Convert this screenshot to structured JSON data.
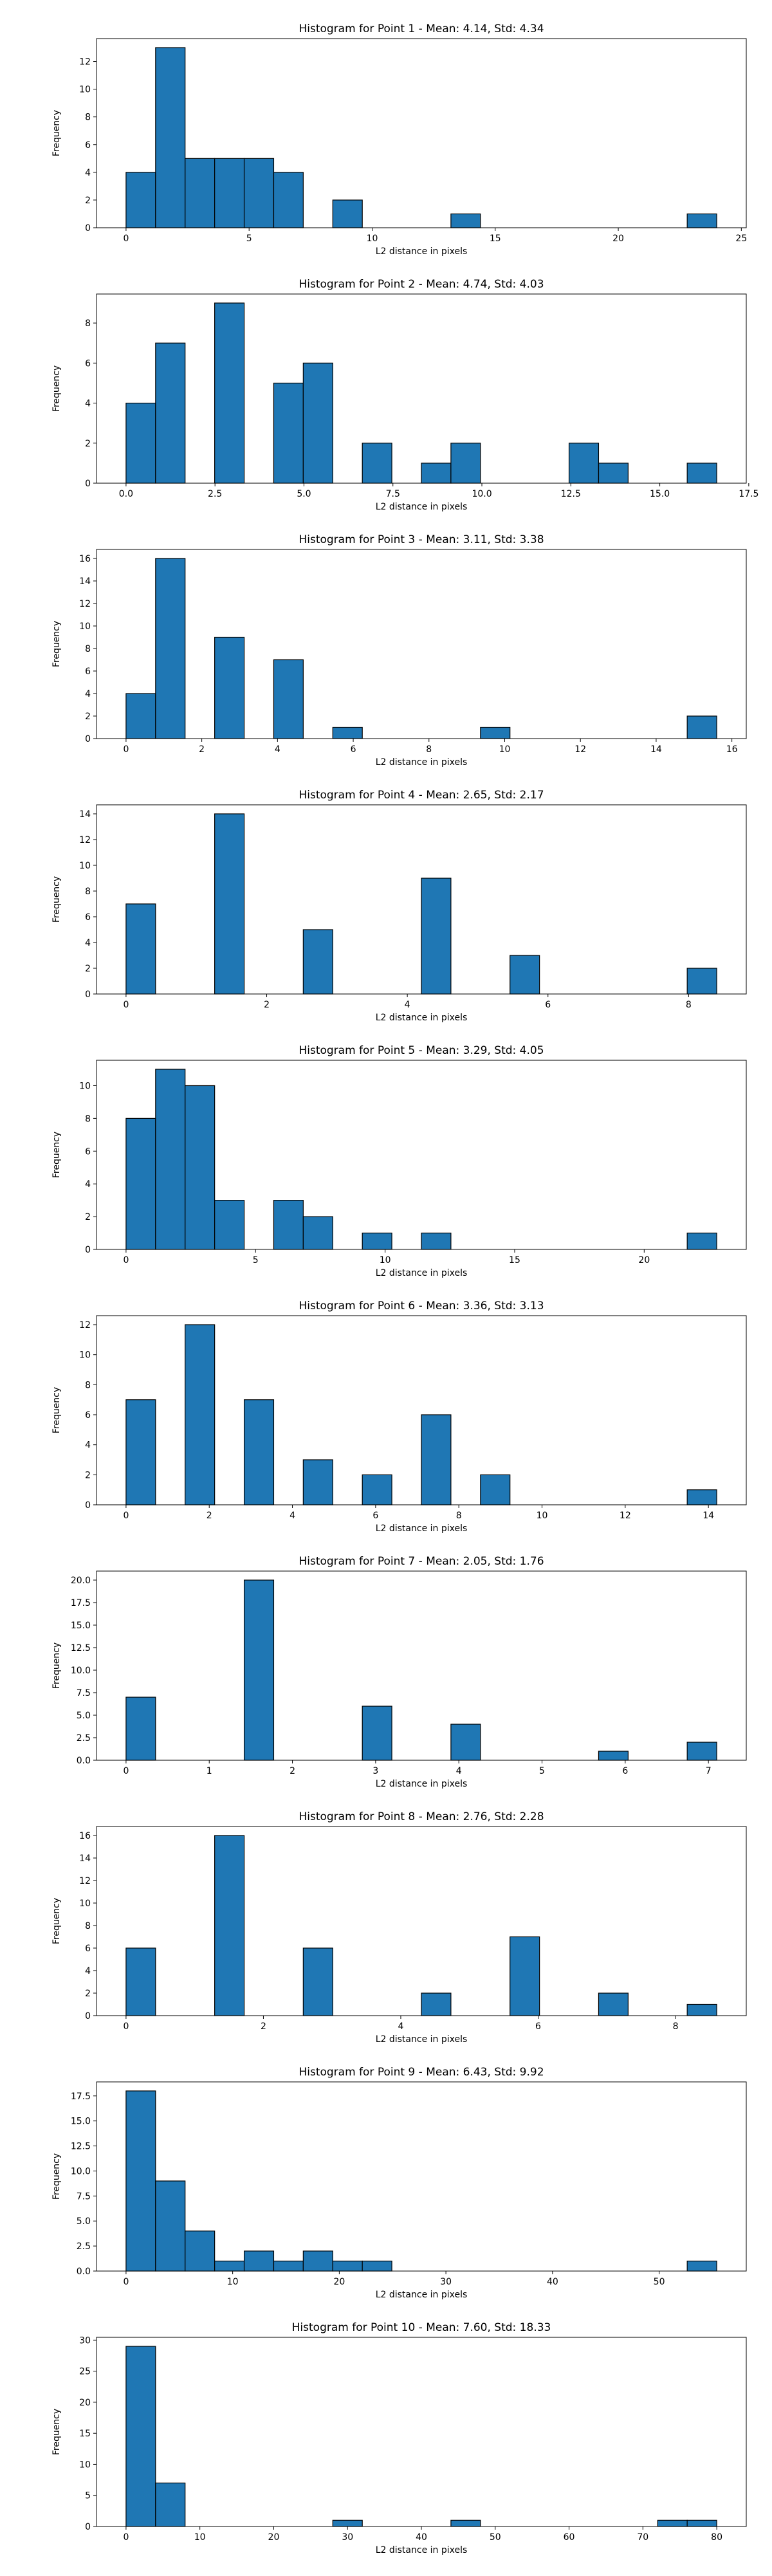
{
  "colors": {
    "bar_fill": "#1f77b4",
    "bar_edge": "#000000",
    "axis": "#000000",
    "background": "#ffffff"
  },
  "chart_data": [
    {
      "type": "bar",
      "title": "Histogram for Point 1 - Mean: 4.14, Std: 4.34",
      "xlabel": "L2 distance in pixels",
      "ylabel": "Frequency",
      "xlim": [
        -1.2,
        25.2
      ],
      "ylim": [
        0,
        13.65
      ],
      "xticks": [
        0,
        5,
        10,
        15,
        20,
        25
      ],
      "xtick_labels": [
        "0",
        "5",
        "10",
        "15",
        "20",
        "25"
      ],
      "yticks": [
        0,
        2,
        4,
        6,
        8,
        10,
        12
      ],
      "ytick_labels": [
        "0",
        "2",
        "4",
        "6",
        "8",
        "10",
        "12"
      ],
      "bin_edges": [
        0,
        1.2,
        2.4,
        3.6,
        4.8,
        6.0,
        7.2,
        8.4,
        9.6,
        10.8,
        12.0,
        13.2,
        14.4,
        15.6,
        16.8,
        18.0,
        19.2,
        20.4,
        21.6,
        22.8,
        24.0
      ],
      "values": [
        4,
        13,
        5,
        5,
        5,
        4,
        0,
        2,
        0,
        0,
        0,
        1,
        0,
        0,
        0,
        0,
        0,
        0,
        0,
        1
      ]
    },
    {
      "type": "bar",
      "title": "Histogram for Point 2 - Mean: 4.74, Std: 4.03",
      "xlabel": "L2 distance in pixels",
      "ylabel": "Frequency",
      "xlim": [
        -0.83,
        17.43
      ],
      "ylim": [
        0,
        9.45
      ],
      "xticks": [
        0,
        2.5,
        5,
        7.5,
        10,
        12.5,
        15,
        17.5
      ],
      "xtick_labels": [
        "0.0",
        "2.5",
        "5.0",
        "7.5",
        "10.0",
        "12.5",
        "15.0",
        "17.5"
      ],
      "yticks": [
        0,
        2,
        4,
        6,
        8
      ],
      "ytick_labels": [
        "0",
        "2",
        "4",
        "6",
        "8"
      ],
      "bin_edges": [
        0,
        0.83,
        1.66,
        2.49,
        3.32,
        4.15,
        4.98,
        5.81,
        6.64,
        7.47,
        8.3,
        9.13,
        9.96,
        10.79,
        11.62,
        12.45,
        13.28,
        14.11,
        14.94,
        15.77,
        16.6
      ],
      "values": [
        4,
        7,
        0,
        9,
        0,
        5,
        6,
        0,
        2,
        0,
        1,
        2,
        0,
        0,
        0,
        2,
        1,
        0,
        0,
        1
      ]
    },
    {
      "type": "bar",
      "title": "Histogram for Point 3 - Mean: 3.11, Std: 3.38",
      "xlabel": "L2 distance in pixels",
      "ylabel": "Frequency",
      "xlim": [
        -0.78,
        16.38
      ],
      "ylim": [
        0,
        16.8
      ],
      "xticks": [
        0,
        2,
        4,
        6,
        8,
        10,
        12,
        14,
        16
      ],
      "xtick_labels": [
        "0",
        "2",
        "4",
        "6",
        "8",
        "10",
        "12",
        "14",
        "16"
      ],
      "yticks": [
        0,
        2,
        4,
        6,
        8,
        10,
        12,
        14,
        16
      ],
      "ytick_labels": [
        "0",
        "2",
        "4",
        "6",
        "8",
        "10",
        "12",
        "14",
        "16"
      ],
      "bin_edges": [
        0,
        0.78,
        1.56,
        2.34,
        3.12,
        3.9,
        4.68,
        5.46,
        6.24,
        7.02,
        7.8,
        8.58,
        9.36,
        10.14,
        10.92,
        11.7,
        12.48,
        13.26,
        14.04,
        14.82,
        15.6
      ],
      "values": [
        4,
        16,
        0,
        9,
        0,
        7,
        0,
        1,
        0,
        0,
        0,
        0,
        1,
        0,
        0,
        0,
        0,
        0,
        0,
        2
      ]
    },
    {
      "type": "bar",
      "title": "Histogram for Point 4 - Mean: 2.65, Std: 2.17",
      "xlabel": "L2 distance in pixels",
      "ylabel": "Frequency",
      "xlim": [
        -0.42,
        8.82
      ],
      "ylim": [
        0,
        14.7
      ],
      "xticks": [
        0,
        2,
        4,
        6,
        8
      ],
      "xtick_labels": [
        "0",
        "2",
        "4",
        "6",
        "8"
      ],
      "yticks": [
        0,
        2,
        4,
        6,
        8,
        10,
        12,
        14
      ],
      "ytick_labels": [
        "0",
        "2",
        "4",
        "6",
        "8",
        "10",
        "12",
        "14"
      ],
      "bin_edges": [
        0,
        0.42,
        0.84,
        1.26,
        1.68,
        2.1,
        2.52,
        2.94,
        3.36,
        3.78,
        4.2,
        4.62,
        5.04,
        5.46,
        5.88,
        6.3,
        6.72,
        7.14,
        7.56,
        7.98,
        8.4
      ],
      "values": [
        7,
        0,
        0,
        14,
        0,
        0,
        5,
        0,
        0,
        0,
        9,
        0,
        0,
        3,
        0,
        0,
        0,
        0,
        0,
        2
      ]
    },
    {
      "type": "bar",
      "title": "Histogram for Point 5 - Mean: 3.29, Std: 4.05",
      "xlabel": "L2 distance in pixels",
      "ylabel": "Frequency",
      "xlim": [
        -1.14,
        23.94
      ],
      "ylim": [
        0,
        11.55
      ],
      "xticks": [
        0,
        5,
        10,
        15,
        20
      ],
      "xtick_labels": [
        "0",
        "5",
        "10",
        "15",
        "20"
      ],
      "yticks": [
        0,
        2,
        4,
        6,
        8,
        10
      ],
      "ytick_labels": [
        "0",
        "2",
        "4",
        "6",
        "8",
        "10"
      ],
      "bin_edges": [
        0,
        1.14,
        2.28,
        3.42,
        4.56,
        5.7,
        6.84,
        7.98,
        9.12,
        10.26,
        11.4,
        12.54,
        13.68,
        14.82,
        15.96,
        17.1,
        18.24,
        19.38,
        20.52,
        21.66,
        22.8
      ],
      "values": [
        8,
        11,
        10,
        3,
        0,
        3,
        2,
        0,
        1,
        0,
        1,
        0,
        0,
        0,
        0,
        0,
        0,
        0,
        0,
        1
      ]
    },
    {
      "type": "bar",
      "title": "Histogram for Point 6 - Mean: 3.36, Std: 3.13",
      "xlabel": "L2 distance in pixels",
      "ylabel": "Frequency",
      "xlim": [
        -0.71,
        14.91
      ],
      "ylim": [
        0,
        12.6
      ],
      "xticks": [
        0,
        2,
        4,
        6,
        8,
        10,
        12,
        14
      ],
      "xtick_labels": [
        "0",
        "2",
        "4",
        "6",
        "8",
        "10",
        "12",
        "14"
      ],
      "yticks": [
        0,
        2,
        4,
        6,
        8,
        10,
        12
      ],
      "ytick_labels": [
        "0",
        "2",
        "4",
        "6",
        "8",
        "10",
        "12"
      ],
      "bin_edges": [
        0,
        0.71,
        1.42,
        2.13,
        2.84,
        3.55,
        4.26,
        4.97,
        5.68,
        6.39,
        7.1,
        7.81,
        8.52,
        9.23,
        9.94,
        10.65,
        11.36,
        12.07,
        12.78,
        13.49,
        14.2
      ],
      "values": [
        7,
        0,
        12,
        0,
        7,
        0,
        3,
        0,
        2,
        0,
        6,
        0,
        2,
        0,
        0,
        0,
        0,
        0,
        0,
        1
      ]
    },
    {
      "type": "bar",
      "title": "Histogram for Point 7 - Mean: 2.05, Std: 1.76",
      "xlabel": "L2 distance in pixels",
      "ylabel": "Frequency",
      "xlim": [
        -0.355,
        7.455
      ],
      "ylim": [
        0,
        21.0
      ],
      "xticks": [
        0,
        1,
        2,
        3,
        4,
        5,
        6,
        7
      ],
      "xtick_labels": [
        "0",
        "1",
        "2",
        "3",
        "4",
        "5",
        "6",
        "7"
      ],
      "yticks": [
        0,
        2.5,
        5,
        7.5,
        10,
        12.5,
        15,
        17.5,
        20
      ],
      "ytick_labels": [
        "0.0",
        "2.5",
        "5.0",
        "7.5",
        "10.0",
        "12.5",
        "15.0",
        "17.5",
        "20.0"
      ],
      "bin_edges": [
        0,
        0.355,
        0.71,
        1.065,
        1.42,
        1.775,
        2.13,
        2.485,
        2.84,
        3.195,
        3.55,
        3.905,
        4.26,
        4.615,
        4.97,
        5.325,
        5.68,
        6.035,
        6.39,
        6.745,
        7.1
      ],
      "values": [
        7,
        0,
        0,
        0,
        20,
        0,
        0,
        0,
        6,
        0,
        0,
        4,
        0,
        0,
        0,
        0,
        1,
        0,
        0,
        2
      ]
    },
    {
      "type": "bar",
      "title": "Histogram for Point 8 - Mean: 2.76, Std: 2.28",
      "xlabel": "L2 distance in pixels",
      "ylabel": "Frequency",
      "xlim": [
        -0.43,
        9.03
      ],
      "ylim": [
        0,
        16.8
      ],
      "xticks": [
        0,
        2,
        4,
        6,
        8
      ],
      "xtick_labels": [
        "0",
        "2",
        "4",
        "6",
        "8"
      ],
      "yticks": [
        0,
        2,
        4,
        6,
        8,
        10,
        12,
        14,
        16
      ],
      "ytick_labels": [
        "0",
        "2",
        "4",
        "6",
        "8",
        "10",
        "12",
        "14",
        "16"
      ],
      "bin_edges": [
        0,
        0.43,
        0.86,
        1.29,
        1.72,
        2.15,
        2.58,
        3.01,
        3.44,
        3.87,
        4.3,
        4.73,
        5.16,
        5.59,
        6.02,
        6.45,
        6.88,
        7.31,
        7.74,
        8.17,
        8.6
      ],
      "values": [
        6,
        0,
        0,
        16,
        0,
        0,
        6,
        0,
        0,
        0,
        2,
        0,
        0,
        7,
        0,
        0,
        2,
        0,
        0,
        1
      ]
    },
    {
      "type": "bar",
      "title": "Histogram for Point 9 - Mean: 6.43, Std: 9.92",
      "xlabel": "L2 distance in pixels",
      "ylabel": "Frequency",
      "xlim": [
        -2.77,
        58.17
      ],
      "ylim": [
        0,
        18.9
      ],
      "xticks": [
        0,
        10,
        20,
        30,
        40,
        50
      ],
      "xtick_labels": [
        "0",
        "10",
        "20",
        "30",
        "40",
        "50"
      ],
      "yticks": [
        0,
        2.5,
        5,
        7.5,
        10,
        12.5,
        15,
        17.5
      ],
      "ytick_labels": [
        "0.0",
        "2.5",
        "5.0",
        "7.5",
        "10.0",
        "12.5",
        "15.0",
        "17.5"
      ],
      "bin_edges": [
        0,
        2.77,
        5.54,
        8.31,
        11.08,
        13.85,
        16.62,
        19.39,
        22.16,
        24.93,
        27.7,
        30.47,
        33.24,
        36.01,
        38.78,
        41.55,
        44.32,
        47.09,
        49.86,
        52.63,
        55.4
      ],
      "values": [
        18,
        9,
        4,
        1,
        2,
        1,
        2,
        1,
        1,
        0,
        0,
        0,
        0,
        0,
        0,
        0,
        0,
        0,
        0,
        1
      ]
    },
    {
      "type": "bar",
      "title": "Histogram for Point 10 - Mean: 7.60, Std: 18.33",
      "xlabel": "L2 distance in pixels",
      "ylabel": "Frequency",
      "xlim": [
        -4.0,
        84.0
      ],
      "ylim": [
        0,
        30.45
      ],
      "xticks": [
        0,
        10,
        20,
        30,
        40,
        50,
        60,
        70,
        80
      ],
      "xtick_labels": [
        "0",
        "10",
        "20",
        "30",
        "40",
        "50",
        "60",
        "70",
        "80"
      ],
      "yticks": [
        0,
        5,
        10,
        15,
        20,
        25,
        30
      ],
      "ytick_labels": [
        "0",
        "5",
        "10",
        "15",
        "20",
        "25",
        "30"
      ],
      "bin_edges": [
        0,
        4,
        8,
        12,
        16,
        20,
        24,
        28,
        32,
        36,
        40,
        44,
        48,
        52,
        56,
        60,
        64,
        68,
        72,
        76,
        80
      ],
      "values": [
        29,
        7,
        0,
        0,
        0,
        0,
        0,
        1,
        0,
        0,
        0,
        1,
        0,
        0,
        0,
        0,
        0,
        0,
        1,
        1
      ]
    }
  ]
}
